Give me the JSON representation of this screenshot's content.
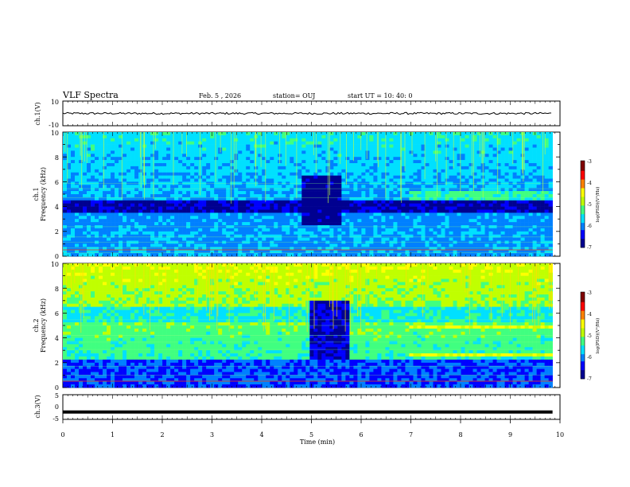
{
  "header": {
    "title": "VLF Spectra",
    "date": "Feb. 5 , 2026",
    "station": "station= OUJ",
    "start": "start UT =  10: 40: 0"
  },
  "colorbar": {
    "label": "log(PSD)(V²/Hz)",
    "ticks": [
      "-3",
      "-4",
      "-5",
      "-6",
      "-7"
    ],
    "colormap": [
      "#000090",
      "#0000ff",
      "#0080ff",
      "#00e0ff",
      "#40ff80",
      "#c0ff00",
      "#ffff00",
      "#ff8000",
      "#ff0000",
      "#800000"
    ]
  },
  "chart_data": [
    {
      "type": "line",
      "name": "ch1-waveform",
      "ylabel": "ch.1(V)",
      "ylim": [
        -10,
        10
      ],
      "ytick_labels": [
        "10",
        "-10"
      ],
      "xlim": [
        0,
        10
      ],
      "description_values": {
        "mean": 0,
        "amplitude": 1
      }
    },
    {
      "type": "heatmap",
      "name": "ch1-spectrogram",
      "ylabel_top": "ch.1",
      "ylabel": "Frequency (kHz)",
      "ylim": [
        0,
        10
      ],
      "ytick_labels": [
        "0",
        "2",
        "4",
        "6",
        "8",
        "10"
      ],
      "xlim": [
        0,
        9.85
      ],
      "zlim": [
        -7,
        -3
      ]
    },
    {
      "type": "heatmap",
      "name": "ch2-spectrogram",
      "ylabel_top": "ch.2",
      "ylabel": "Frequency (kHz)",
      "ylim": [
        0,
        10
      ],
      "ytick_labels": [
        "0",
        "2",
        "4",
        "6",
        "8",
        "10"
      ],
      "xlim": [
        0,
        9.85
      ],
      "zlim": [
        -7,
        -3
      ]
    },
    {
      "type": "line",
      "name": "ch3-waveform",
      "ylabel": "ch.3(V)",
      "ylim": [
        -5,
        5
      ],
      "ytick_labels": [
        "5",
        "0",
        "-5"
      ],
      "xlim": [
        0,
        10
      ],
      "x": [
        0,
        9.85
      ],
      "y": [
        -2,
        -2
      ]
    }
  ],
  "xaxis": {
    "label": "Time (min)",
    "ticks": [
      "0",
      "1",
      "2",
      "3",
      "4",
      "5",
      "6",
      "7",
      "8",
      "9",
      "10"
    ]
  }
}
